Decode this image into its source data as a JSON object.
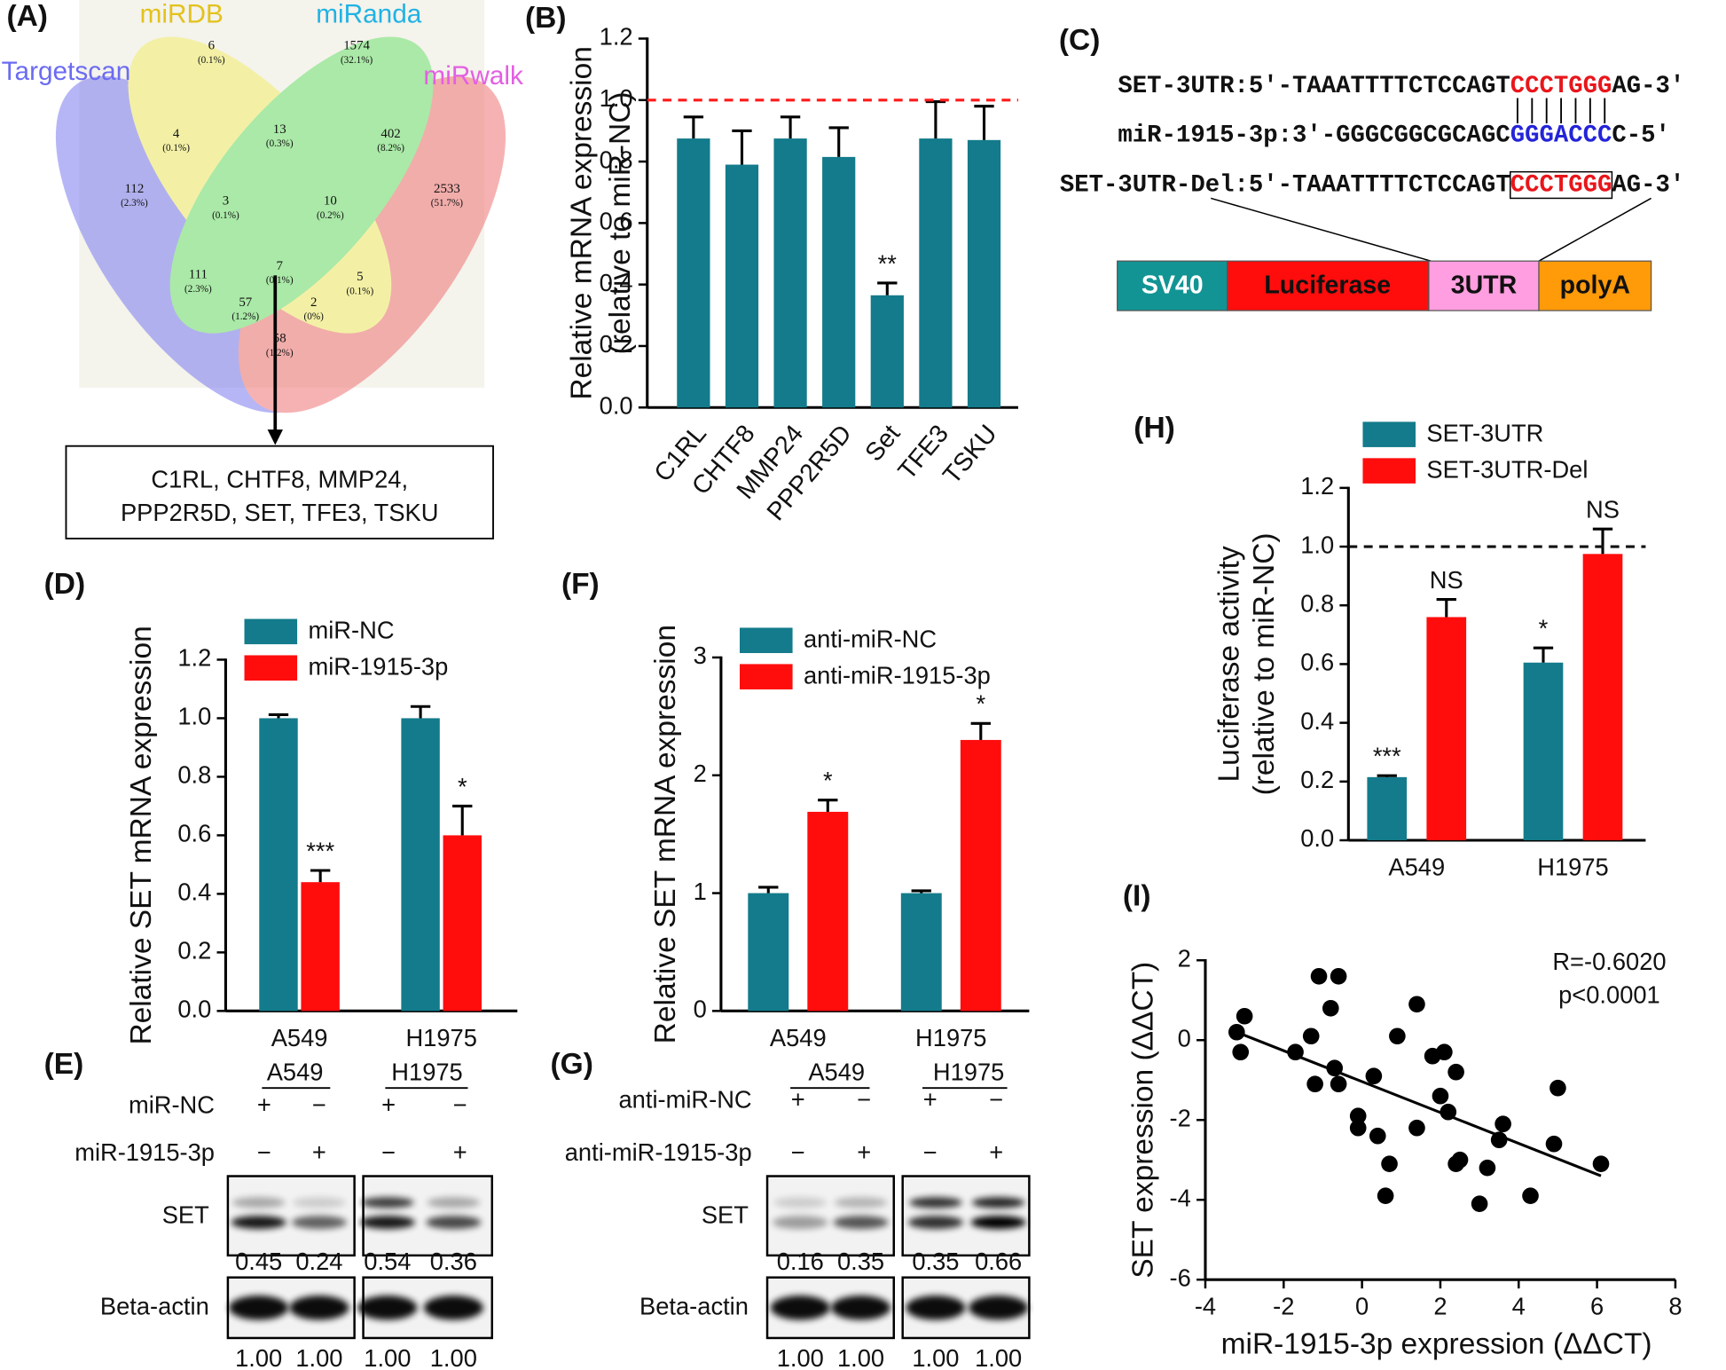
{
  "venn": {
    "label": "(A)",
    "sets": [
      {
        "name": "Targetscan",
        "color": "#6b6bf2"
      },
      {
        "name": "miRDB",
        "color": "#e3c21c"
      },
      {
        "name": "miRanda",
        "color": "#21b2e3"
      },
      {
        "name": "miRwalk",
        "color": "#e35fe3"
      }
    ],
    "regions": [
      {
        "count": "6",
        "percent": "(0.1%)"
      },
      {
        "count": "1574",
        "percent": "(32.1%)"
      },
      {
        "count": "4",
        "percent": "(0.1%)"
      },
      {
        "count": "13",
        "percent": "(0.3%)"
      },
      {
        "count": "402",
        "percent": "(8.2%)"
      },
      {
        "count": "112",
        "percent": "(2.3%)"
      },
      {
        "count": "3",
        "percent": "(0.1%)"
      },
      {
        "count": "10",
        "percent": "(0.2%)"
      },
      {
        "count": "2533",
        "percent": "(51.7%)"
      },
      {
        "count": "111",
        "percent": "(2.3%)"
      },
      {
        "count": "7",
        "percent": "(0.1%)"
      },
      {
        "count": "5",
        "percent": "(0.1%)"
      },
      {
        "count": "57",
        "percent": "(1.2%)"
      },
      {
        "count": "2",
        "percent": "(0%)"
      },
      {
        "count": "58",
        "percent": "(1.2%)"
      }
    ],
    "targets": [
      "C1RL, CHTF8, MMP24,",
      "PPP2R5D, SET, TFE3, TSKU"
    ]
  },
  "sequence": {
    "label": "(C)",
    "lines": [
      {
        "prefix": "SET-3UTR:5′-TAAATTTTCTCCAGT",
        "site": "CCCTGGG",
        "suffix": "AG-3′",
        "site_color": "#e8161b"
      },
      {
        "prefix": "miR-1915-3p:3′-GGGCGGCGCAGC",
        "site": "GGGACCC",
        "suffix": "C-5′",
        "site_color": "#2424d8"
      },
      {
        "prefix": "SET-3UTR-Del:5′-TAAATTTTCTCCAGT",
        "site": "CCCTGGG",
        "suffix": "AG-3′",
        "site_color": "#e8161b"
      }
    ],
    "construct": [
      "SV40",
      "Luciferase",
      "3UTR",
      "polyA"
    ]
  },
  "blots": [
    {
      "label": "(E)",
      "groups": [
        "A549",
        "H1975"
      ],
      "rows": [
        {
          "name": "miR-NC",
          "signs": [
            "+",
            "−",
            "+",
            "−"
          ]
        },
        {
          "name": "miR-1915-3p",
          "signs": [
            "−",
            "+",
            "−",
            "+"
          ]
        }
      ],
      "bands": [
        {
          "name": "SET",
          "quantification": [
            "0.45",
            "0.24",
            "0.54",
            "0.36"
          ]
        },
        {
          "name": "Beta-actin",
          "quantification": [
            "1.00",
            "1.00",
            "1.00",
            "1.00"
          ]
        }
      ]
    },
    {
      "label": "(G)",
      "groups": [
        "A549",
        "H1975"
      ],
      "rows": [
        {
          "name": "anti-miR-NC",
          "signs": [
            "+",
            "−",
            "+",
            "−"
          ]
        },
        {
          "name": "anti-miR-1915-3p",
          "signs": [
            "−",
            "+",
            "−",
            "+"
          ]
        }
      ],
      "bands": [
        {
          "name": "SET",
          "quantification": [
            "0.16",
            "0.35",
            "0.35",
            "0.66"
          ]
        },
        {
          "name": "Beta-actin",
          "quantification": [
            "1.00",
            "1.00",
            "1.00",
            "1.00"
          ]
        }
      ]
    }
  ],
  "chart_data": [
    {
      "type": "bar",
      "label": "(B)",
      "ylabel": [
        "Relative mRNA expression",
        "(relative to miR-NC)"
      ],
      "categories": [
        "C1RL",
        "CHTF8",
        "MMP24",
        "PPP2R5D",
        "Set",
        "TFE3",
        "TSKU"
      ],
      "values": [
        0.875,
        0.79,
        0.875,
        0.815,
        0.365,
        0.875,
        0.87
      ],
      "errors": [
        0.07,
        0.11,
        0.07,
        0.095,
        0.04,
        0.12,
        0.11
      ],
      "annotations": [
        null,
        null,
        null,
        null,
        "**",
        null,
        null
      ],
      "color": "#137b8b",
      "ylim": [
        0,
        1.2
      ],
      "yticks": [
        {
          "value": 0,
          "label": "0.0"
        },
        0.2,
        0.4,
        0.6,
        0.8,
        {
          "value": 1,
          "label": "1.0"
        },
        1.2
      ],
      "reference_line": 1,
      "reference_color": "#ff1a1a"
    },
    {
      "type": "bar",
      "label": "(D)",
      "ylabel": [
        "Relative SET mRNA expression"
      ],
      "categories": [
        "A549",
        "H1975"
      ],
      "series": [
        {
          "name": "miR-NC",
          "color": "#137b8b",
          "values": [
            1.0,
            1.0
          ],
          "errors": [
            0.012,
            0.04
          ],
          "annotations": [
            null,
            null
          ]
        },
        {
          "name": "miR-1915-3p",
          "color": "#ff0d0d",
          "values": [
            0.44,
            0.6
          ],
          "errors": [
            0.04,
            0.1
          ],
          "annotations": [
            "***",
            "*"
          ]
        }
      ],
      "ylim": [
        0,
        1.2
      ],
      "yticks": [
        {
          "value": 0,
          "label": "0.0"
        },
        0.2,
        0.4,
        0.6,
        0.8,
        {
          "value": 1,
          "label": "1.0"
        },
        1.2
      ]
    },
    {
      "type": "bar",
      "label": "(F)",
      "ylabel": [
        "Relative SET mRNA expression"
      ],
      "categories": [
        "A549",
        "H1975"
      ],
      "series": [
        {
          "name": "anti-miR-NC",
          "color": "#137b8b",
          "values": [
            1.0,
            1.0
          ],
          "errors": [
            0.05,
            0.02
          ],
          "annotations": [
            null,
            null
          ]
        },
        {
          "name": "anti-miR-1915-3p",
          "color": "#ff0d0d",
          "values": [
            1.69,
            2.3
          ],
          "errors": [
            0.1,
            0.14
          ],
          "annotations": [
            "*",
            "*"
          ]
        }
      ],
      "ylim": [
        0,
        3
      ],
      "yticks": [
        0,
        1,
        2,
        3
      ]
    },
    {
      "type": "bar",
      "label": "(H)",
      "ylabel": [
        "Luciferase activity",
        "(relative to miR-NC)"
      ],
      "categories": [
        "A549",
        "H1975"
      ],
      "series": [
        {
          "name": "SET-3UTR",
          "color": "#137b8b",
          "values": [
            0.215,
            0.605
          ],
          "errors": [
            0.005,
            0.05
          ],
          "annotations": [
            "***",
            "*"
          ]
        },
        {
          "name": "SET-3UTR-Del",
          "color": "#ff0d0d",
          "values": [
            0.76,
            0.975
          ],
          "errors": [
            0.06,
            0.085
          ],
          "annotations": [
            "NS",
            "NS"
          ]
        }
      ],
      "ylim": [
        0,
        1.2
      ],
      "yticks": [
        {
          "value": 0,
          "label": "0.0"
        },
        0.2,
        0.4,
        0.6,
        0.8,
        {
          "value": 1,
          "label": "1.0"
        },
        1.2
      ],
      "reference_line": 1,
      "reference_color": "#111111"
    },
    {
      "type": "scatter",
      "label": "(I)",
      "ylabel": [
        "SET expression (ΔΔCT)"
      ],
      "xlabel": "miR-1915-3p expression (ΔΔCT)",
      "x": [
        -3.2,
        -3.0,
        -3.1,
        -1.7,
        -1.3,
        -1.1,
        -0.6,
        -0.8,
        -1.2,
        -0.6,
        -0.7,
        0.3,
        0.9,
        -0.1,
        -0.1,
        0.4,
        0.7,
        0.6,
        1.4,
        1.4,
        1.8,
        2.1,
        2.0,
        2.2,
        2.4,
        2.4,
        2.5,
        3.2,
        3.0,
        3.5,
        3.6,
        4.3,
        5.0,
        4.9,
        6.1
      ],
      "values": [
        0.2,
        0.6,
        -0.3,
        -0.3,
        0.1,
        1.6,
        1.6,
        0.8,
        -1.1,
        -1.1,
        -0.7,
        -0.9,
        0.1,
        -1.9,
        -2.2,
        -2.4,
        -3.1,
        -3.9,
        -2.2,
        0.9,
        -0.4,
        -0.3,
        -1.4,
        -1.8,
        -0.8,
        -3.1,
        -3.0,
        -3.2,
        -4.1,
        -2.5,
        -2.1,
        -3.9,
        -1.2,
        -2.6,
        -3.1
      ],
      "color": "#000000",
      "fit": {
        "x": [
          -3.2,
          6.1
        ],
        "y": [
          0.2,
          -3.4
        ]
      },
      "annotations": [
        "R=-0.6020",
        "p<0.0001"
      ],
      "xlim": [
        -4,
        8
      ],
      "xticks": [
        -4,
        -2,
        0,
        2,
        4,
        6,
        8
      ],
      "ylim": [
        -6,
        2
      ],
      "yticks": [
        -6,
        -4,
        -2,
        0,
        2
      ]
    }
  ]
}
